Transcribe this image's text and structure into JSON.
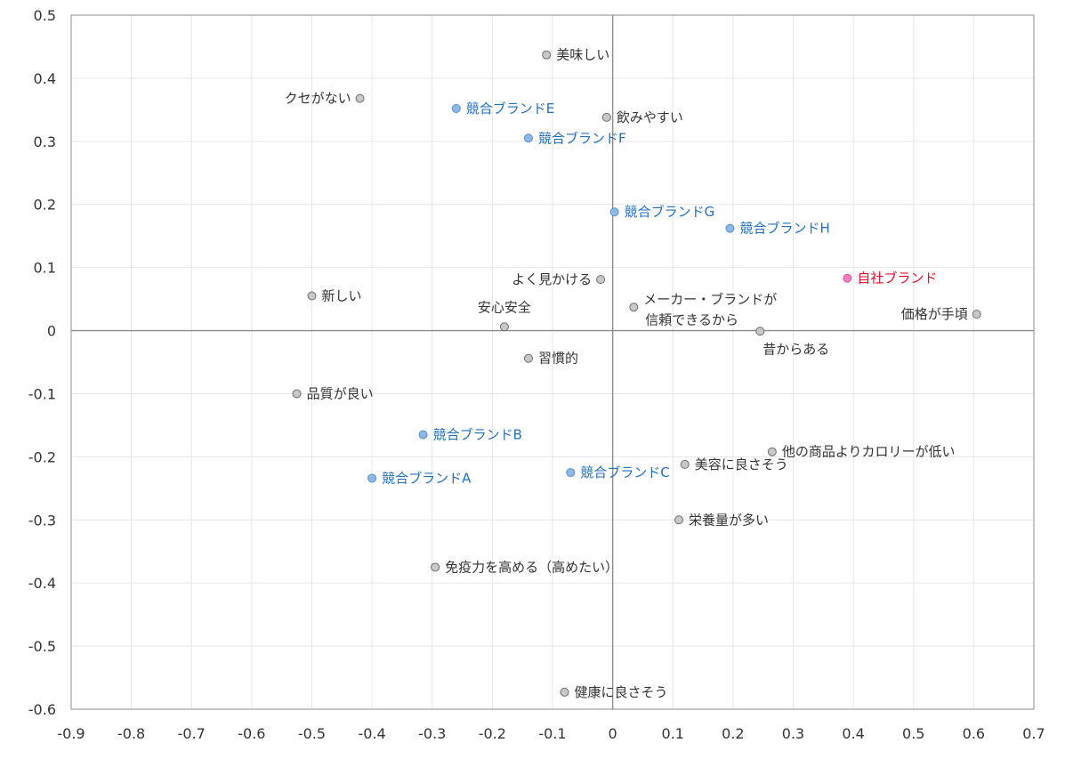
{
  "chart_data": {
    "type": "scatter",
    "title": "",
    "xlabel": "",
    "ylabel": "",
    "xlim": [
      -0.9,
      0.7
    ],
    "ylim": [
      -0.6,
      0.5
    ],
    "x_ticks": [
      "-0.9",
      "-0.8",
      "-0.7",
      "-0.6",
      "-0.5",
      "-0.4",
      "-0.3",
      "-0.2",
      "-0.1",
      "0",
      "0.1",
      "0.2",
      "0.3",
      "0.4",
      "0.5",
      "0.6",
      "0.7"
    ],
    "y_ticks": [
      "0.5",
      "0.4",
      "0.3",
      "0.2",
      "0.1",
      "0",
      "-0.1",
      "-0.2",
      "-0.3",
      "-0.4",
      "-0.5",
      "-0.6"
    ],
    "grid": true,
    "colors": {
      "attribute": "#c8c8c8",
      "attribute_text": "#333333",
      "competitor": "#8db9e8",
      "competitor_text": "#1f6fbf",
      "own_brand": "#f27fc4",
      "own_brand_text": "#e0102a"
    },
    "points": [
      {
        "label": "美味しい",
        "x": -0.11,
        "y": 0.437,
        "group": "attribute",
        "anchor": "start"
      },
      {
        "label": "クセがない",
        "x": -0.42,
        "y": 0.368,
        "group": "attribute",
        "anchor": "end"
      },
      {
        "label": "飲みやすい",
        "x": -0.01,
        "y": 0.338,
        "group": "attribute",
        "anchor": "start"
      },
      {
        "label": "よく見かける",
        "x": -0.02,
        "y": 0.081,
        "group": "attribute",
        "anchor": "end"
      },
      {
        "label": "新しい",
        "x": -0.5,
        "y": 0.055,
        "group": "attribute",
        "anchor": "start"
      },
      {
        "label": "安心安全",
        "x": -0.18,
        "y": 0.006,
        "group": "attribute",
        "anchor": "above"
      },
      {
        "label": [
          "メーカー・ブランドが",
          "信頼できるから"
        ],
        "x": 0.035,
        "y": 0.037,
        "group": "attribute",
        "anchor": "start"
      },
      {
        "label": "昔からある",
        "x": 0.245,
        "y": -0.001,
        "group": "attribute",
        "anchor": "below"
      },
      {
        "label": "価格が手頃",
        "x": 0.605,
        "y": 0.026,
        "group": "attribute",
        "anchor": "end"
      },
      {
        "label": "習慣的",
        "x": -0.14,
        "y": -0.044,
        "group": "attribute",
        "anchor": "start"
      },
      {
        "label": "品質が良い",
        "x": -0.525,
        "y": -0.1,
        "group": "attribute",
        "anchor": "start"
      },
      {
        "label": "他の商品よりカロリーが低い",
        "x": 0.265,
        "y": -0.192,
        "group": "attribute",
        "anchor": "start"
      },
      {
        "label": "美容に良さそう",
        "x": 0.12,
        "y": -0.212,
        "group": "attribute",
        "anchor": "start"
      },
      {
        "label": "栄養量が多い",
        "x": 0.11,
        "y": -0.3,
        "group": "attribute",
        "anchor": "start"
      },
      {
        "label": "免疫力を高める（高めたい）",
        "x": -0.295,
        "y": -0.375,
        "group": "attribute",
        "anchor": "start"
      },
      {
        "label": "健康に良さそう",
        "x": -0.08,
        "y": -0.573,
        "group": "attribute",
        "anchor": "start"
      },
      {
        "label": "競合ブランドE",
        "x": -0.26,
        "y": 0.352,
        "group": "competitor",
        "anchor": "start"
      },
      {
        "label": "競合ブランドF",
        "x": -0.14,
        "y": 0.305,
        "group": "competitor",
        "anchor": "start"
      },
      {
        "label": "競合ブランドG",
        "x": 0.003,
        "y": 0.188,
        "group": "competitor",
        "anchor": "start"
      },
      {
        "label": "競合ブランドH",
        "x": 0.195,
        "y": 0.162,
        "group": "competitor",
        "anchor": "start"
      },
      {
        "label": "競合ブランドB",
        "x": -0.315,
        "y": -0.165,
        "group": "competitor",
        "anchor": "start"
      },
      {
        "label": "競合ブランドA",
        "x": -0.4,
        "y": -0.234,
        "group": "competitor",
        "anchor": "start"
      },
      {
        "label": "競合ブランドC",
        "x": -0.07,
        "y": -0.225,
        "group": "competitor",
        "anchor": "start"
      },
      {
        "label": "自社ブランド",
        "x": 0.39,
        "y": 0.083,
        "group": "own_brand",
        "anchor": "start"
      }
    ]
  }
}
